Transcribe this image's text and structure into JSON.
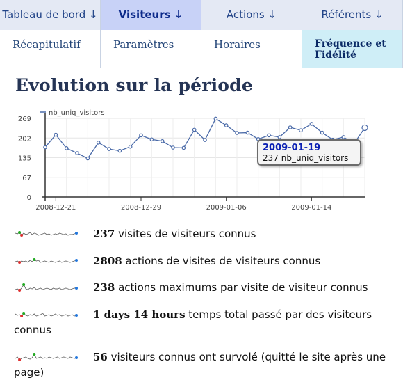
{
  "menu": {
    "top": [
      {
        "label": "Tableau de bord ↓",
        "active": false
      },
      {
        "label": "Visiteurs ↓",
        "active": true
      },
      {
        "label": "Actions ↓",
        "active": false
      },
      {
        "label": "Référents ↓",
        "active": false
      }
    ],
    "sub": [
      {
        "label": "Récapitulatif",
        "active": false
      },
      {
        "label": "Paramètres",
        "active": false
      },
      {
        "label": "Horaires",
        "active": false
      },
      {
        "label": "Fréquence et Fidélité",
        "active": true
      }
    ]
  },
  "page": {
    "title": "Evolution sur la période"
  },
  "chart_data": {
    "type": "line",
    "legend": "nb_uniq_visitors",
    "y_ticks": [
      "269",
      "202",
      "135",
      "67",
      "0"
    ],
    "x_ticks": [
      "2008-12-21",
      "2008-12-29",
      "2009-01-06",
      "2009-01-14"
    ],
    "ylim": [
      0,
      269
    ],
    "x": [
      "2008-12-20",
      "2008-12-21",
      "2008-12-22",
      "2008-12-23",
      "2008-12-24",
      "2008-12-25",
      "2008-12-26",
      "2008-12-27",
      "2008-12-28",
      "2008-12-29",
      "2008-12-30",
      "2008-12-31",
      "2009-01-01",
      "2009-01-02",
      "2009-01-03",
      "2009-01-04",
      "2009-01-05",
      "2009-01-06",
      "2009-01-07",
      "2009-01-08",
      "2009-01-09",
      "2009-01-10",
      "2009-01-11",
      "2009-01-12",
      "2009-01-13",
      "2009-01-14",
      "2009-01-15",
      "2009-01-16",
      "2009-01-17",
      "2009-01-18",
      "2009-01-19"
    ],
    "values": [
      170,
      213,
      167,
      150,
      132,
      186,
      164,
      158,
      172,
      211,
      197,
      191,
      169,
      168,
      230,
      195,
      268,
      245,
      219,
      220,
      198,
      211,
      205,
      238,
      228,
      250,
      220,
      196,
      205,
      183,
      237
    ],
    "grid": true,
    "highlight_index": 30
  },
  "tooltip": {
    "date": "2009-01-19",
    "value_text": "237 nb_uniq_visitors"
  },
  "sparklines": [
    {
      "number": "237",
      "text": " visites de visiteurs connus"
    },
    {
      "number": "2808",
      "text": " actions de visites de visiteurs connus"
    },
    {
      "number": "238",
      "text": " actions maximums par visite de visiteur connus"
    },
    {
      "number": "1 days 14 hours",
      "text": " temps total passé par des visiteurs connus"
    },
    {
      "number": "56",
      "text": " visiteurs connus ont survolé (quitté le site après une page)"
    }
  ],
  "colors": {
    "line": "#4a6aa8",
    "active_tab": "#c8d2f7",
    "active_sub": "#cfeef7",
    "title": "#253455",
    "tooltip_date": "#0a1fb3"
  }
}
